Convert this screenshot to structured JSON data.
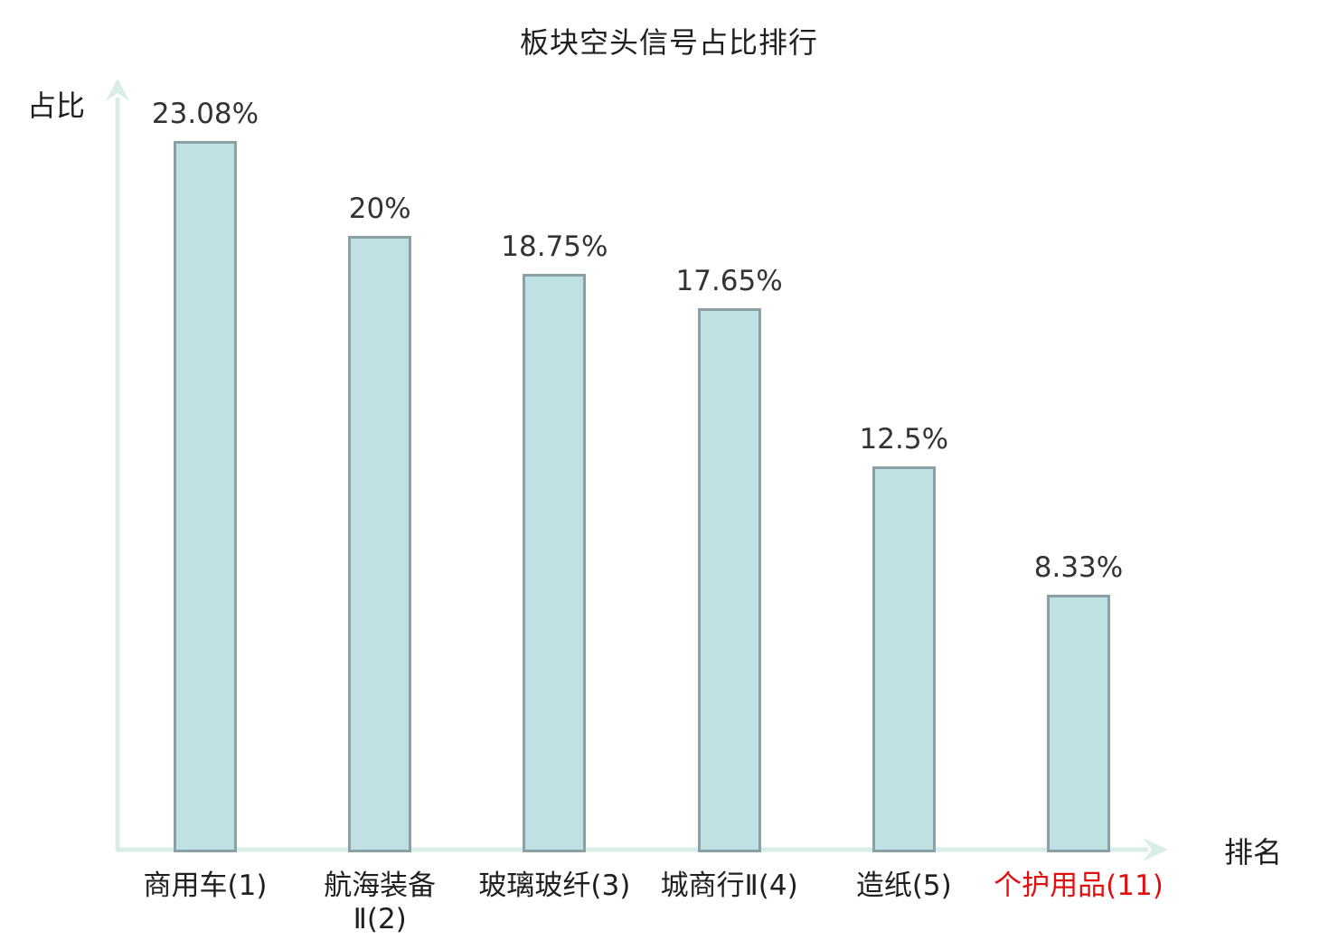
{
  "title": "板块空头信号占比排行",
  "y_axis_label": "占比",
  "x_axis_label": "排名",
  "colors": {
    "bar_fill": "#bfe1e3",
    "bar_border": "#8aa0a4",
    "axis": "#d8ece8",
    "value_label": "#333333",
    "category_default": "#1f1f1f",
    "category_highlight": "#e01010"
  },
  "chart_data": {
    "type": "bar",
    "categories": [
      "商用车(1)",
      "航海装备Ⅱ(2)",
      "玻璃玻纤(3)",
      "城商行Ⅱ(4)",
      "造纸(5)",
      "个护用品(11)"
    ],
    "values": [
      23.08,
      20,
      18.75,
      17.65,
      12.5,
      8.33
    ],
    "value_labels": [
      "23.08%",
      "20%",
      "18.75%",
      "17.65%",
      "12.5%",
      "8.33%"
    ],
    "category_display_lines": [
      [
        "商用车(1)"
      ],
      [
        "航海装备",
        "Ⅱ(2)"
      ],
      [
        "玻璃玻纤(3)"
      ],
      [
        "城商行Ⅱ(4)"
      ],
      [
        "造纸(5)"
      ],
      [
        "个护用品(11)"
      ]
    ],
    "highlight_index": 5,
    "title": "板块空头信号占比排行",
    "xlabel": "排名",
    "ylabel": "占比",
    "ylim": [
      0,
      25
    ],
    "grid": false,
    "legend": "none"
  }
}
